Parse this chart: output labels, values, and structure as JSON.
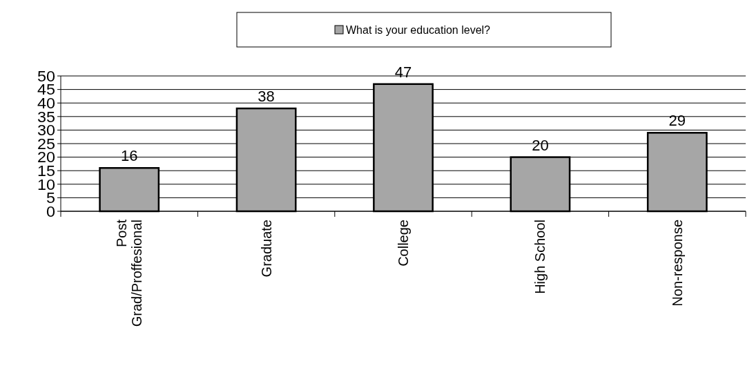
{
  "chart_data": {
    "type": "bar",
    "categories": [
      "Post Grad/Proffesional",
      "Graduate",
      "College",
      "High School",
      "Non-response"
    ],
    "series": [
      {
        "name": "What is your education level?",
        "color": "#a6a6a6",
        "values": [
          16,
          38,
          47,
          20,
          29
        ]
      }
    ],
    "ylim": [
      0,
      50
    ],
    "yticks": [
      0,
      5,
      10,
      15,
      20,
      25,
      30,
      35,
      40,
      45,
      50
    ],
    "grid": "y",
    "legend": "top",
    "data_labels": true
  }
}
